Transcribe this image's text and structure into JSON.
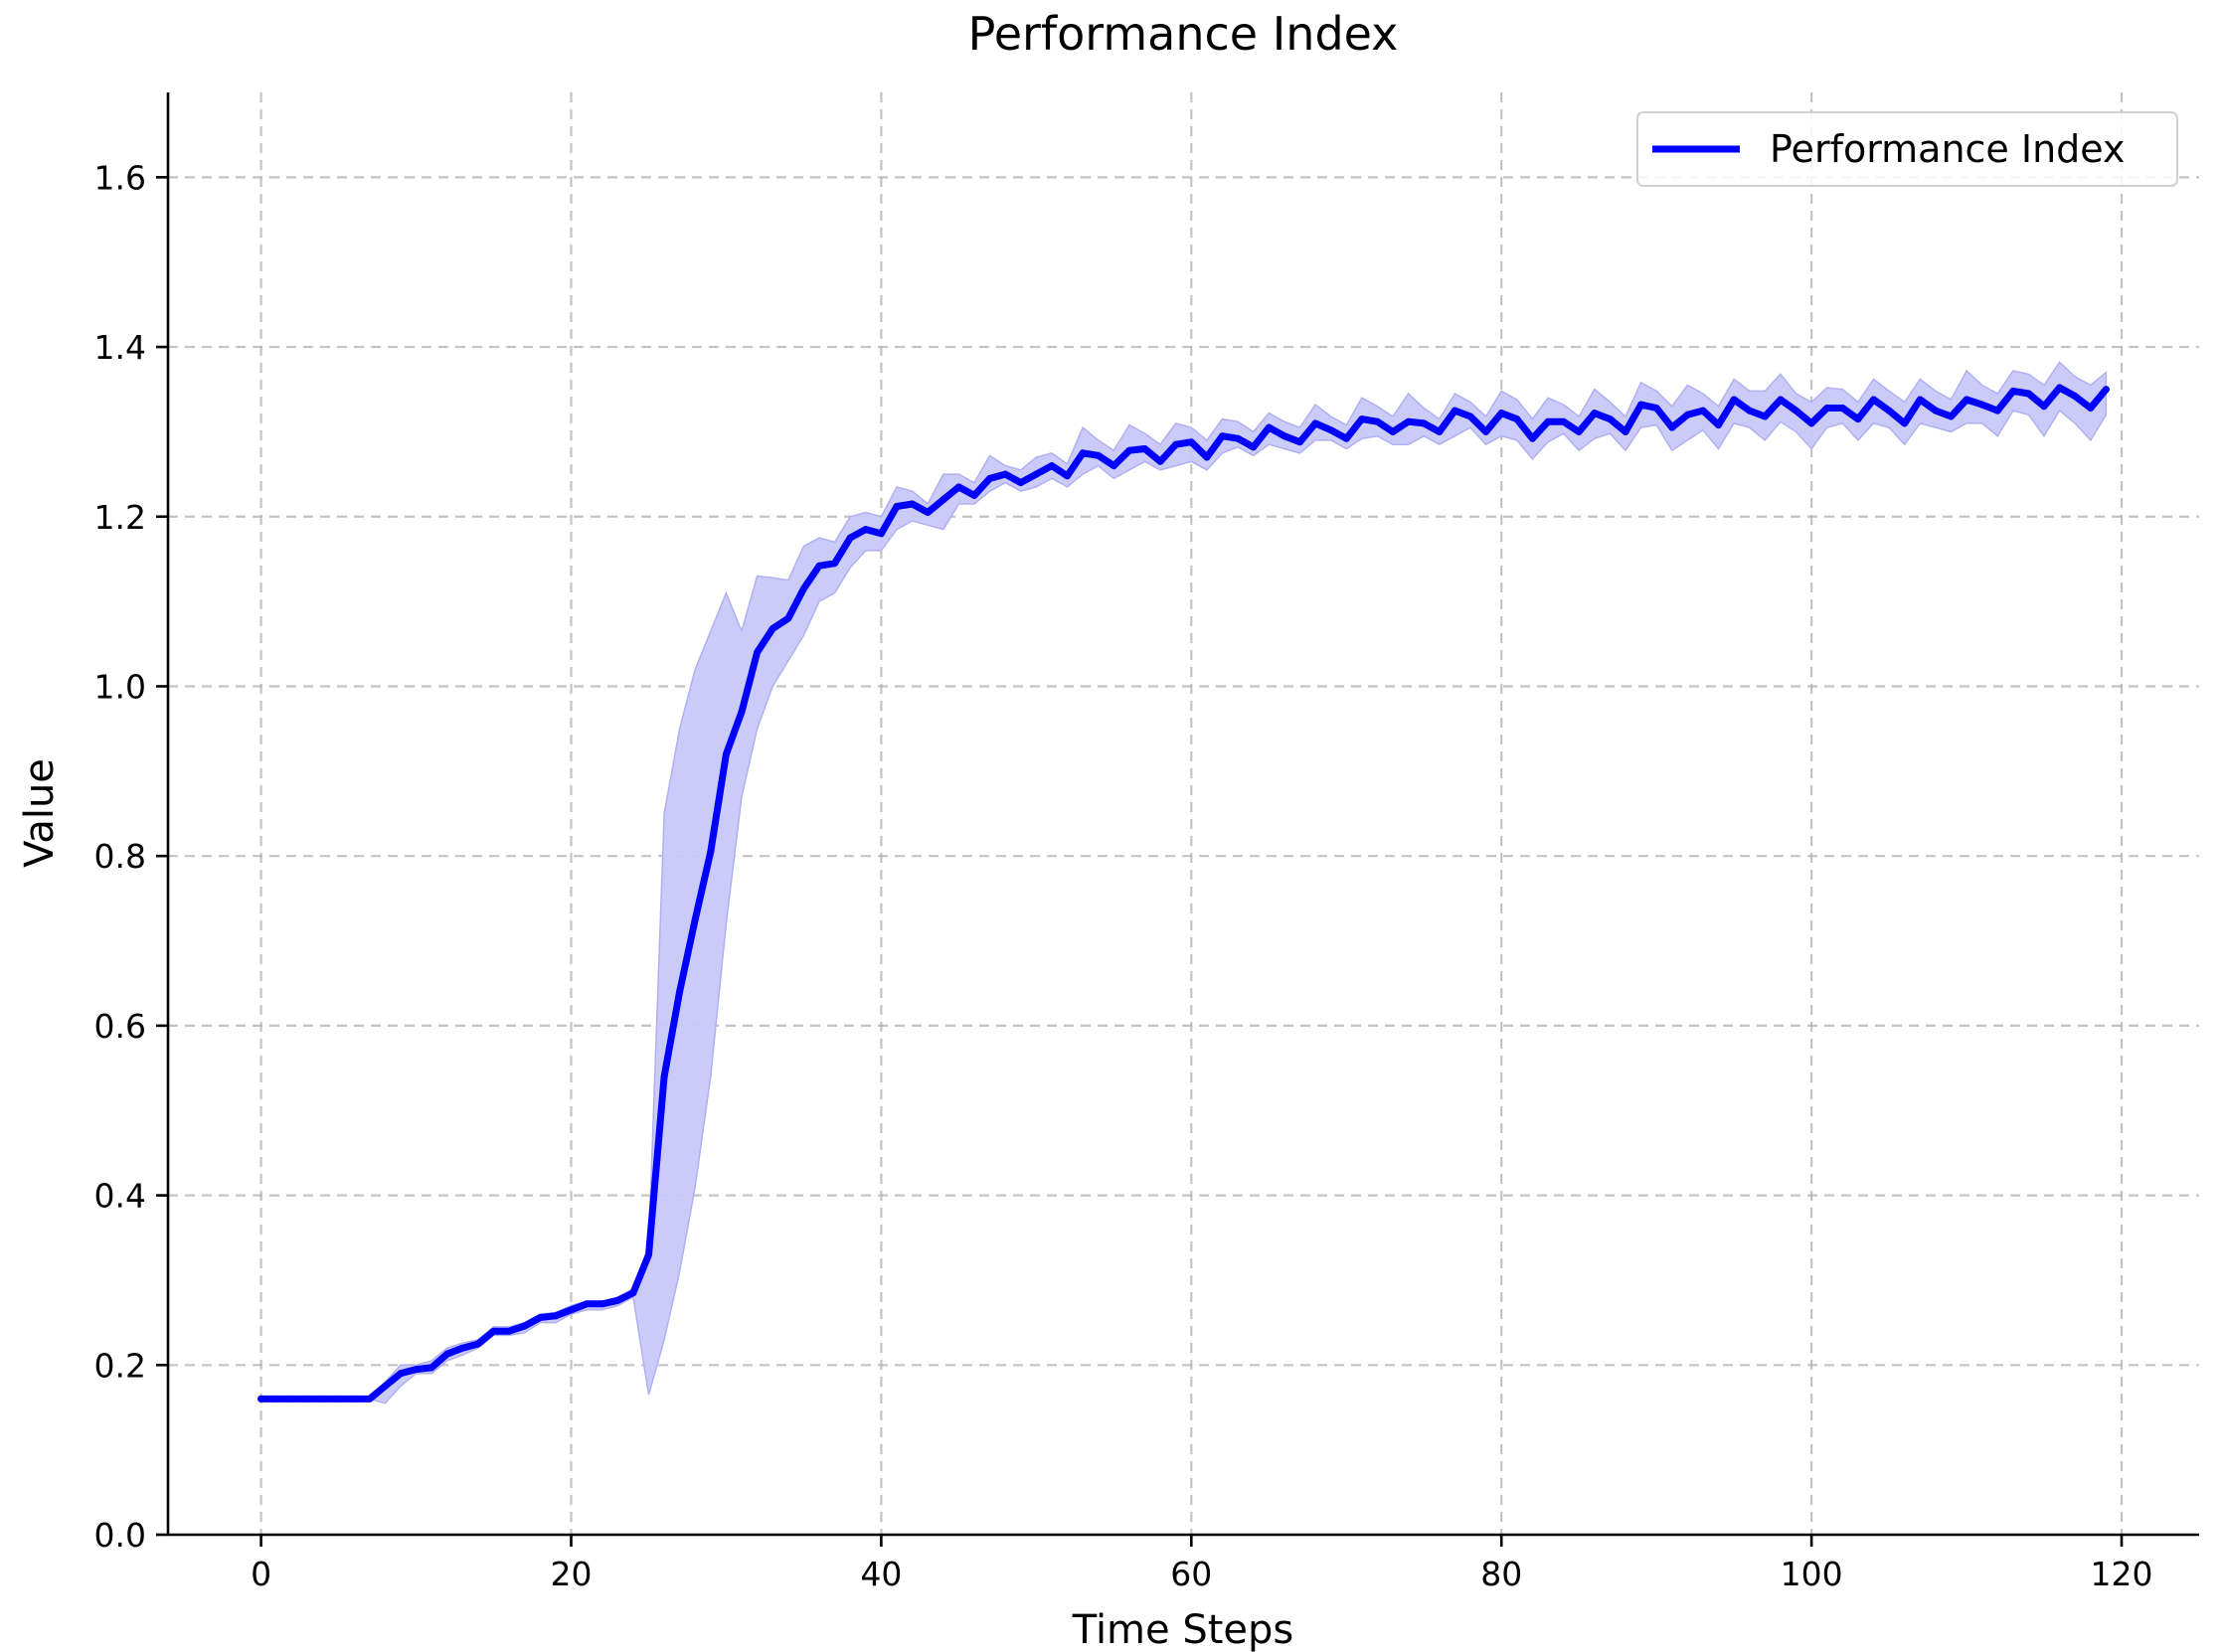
{
  "chart_data": {
    "type": "line",
    "title": "Performance Index",
    "xlabel": "Time Steps",
    "ylabel": "Value",
    "xlim": [
      -6,
      125
    ],
    "ylim": [
      0.0,
      1.7
    ],
    "xticks": [
      0,
      20,
      40,
      60,
      80,
      100,
      120
    ],
    "yticks": [
      0.0,
      0.2,
      0.4,
      0.6,
      0.8,
      1.0,
      1.2,
      1.4,
      1.6
    ],
    "ytick_labels": [
      "0.0",
      "0.2",
      "0.4",
      "0.6",
      "0.8",
      "1.0",
      "1.2",
      "1.4",
      "1.6"
    ],
    "grid": true,
    "legend": "top-right",
    "colors": {
      "line": "#0000ff",
      "band": "#c8c8fa",
      "grid": "#b0b0b0"
    },
    "series": [
      {
        "name": "Performance Index",
        "x": [
          0,
          1,
          2,
          3,
          4,
          5,
          6,
          7,
          8,
          9,
          10,
          11,
          12,
          13,
          14,
          15,
          16,
          17,
          18,
          19,
          20,
          21,
          22,
          23,
          24,
          25,
          26,
          27,
          28,
          29,
          30,
          31,
          32,
          33,
          34,
          35,
          36,
          37,
          38,
          39,
          40,
          41,
          42,
          43,
          44,
          45,
          46,
          47,
          48,
          49,
          50,
          51,
          52,
          53,
          54,
          55,
          56,
          57,
          58,
          59,
          60,
          61,
          62,
          63,
          64,
          65,
          66,
          67,
          68,
          69,
          70,
          71,
          72,
          73,
          74,
          75,
          76,
          77,
          78,
          79,
          80,
          81,
          82,
          83,
          84,
          85,
          86,
          87,
          88,
          89,
          90,
          91,
          92,
          93,
          94,
          95,
          96,
          97,
          98,
          99,
          100,
          101,
          102,
          103,
          104,
          105,
          106,
          107,
          108,
          109,
          110,
          111,
          112,
          113,
          114,
          115,
          116,
          117,
          118,
          119
        ],
        "values": [
          0.16,
          0.16,
          0.16,
          0.16,
          0.16,
          0.16,
          0.16,
          0.16,
          0.175,
          0.19,
          0.195,
          0.197,
          0.213,
          0.22,
          0.225,
          0.24,
          0.24,
          0.246,
          0.256,
          0.258,
          0.265,
          0.272,
          0.272,
          0.276,
          0.285,
          0.33,
          0.54,
          0.64,
          0.725,
          0.805,
          0.92,
          0.97,
          1.04,
          1.068,
          1.08,
          1.115,
          1.142,
          1.145,
          1.175,
          1.185,
          1.18,
          1.212,
          1.215,
          1.205,
          1.22,
          1.235,
          1.225,
          1.245,
          1.25,
          1.24,
          1.25,
          1.26,
          1.248,
          1.275,
          1.272,
          1.26,
          1.278,
          1.28,
          1.265,
          1.285,
          1.288,
          1.27,
          1.295,
          1.292,
          1.282,
          1.305,
          1.295,
          1.288,
          1.31,
          1.302,
          1.292,
          1.315,
          1.312,
          1.3,
          1.312,
          1.31,
          1.3,
          1.325,
          1.318,
          1.3,
          1.322,
          1.315,
          1.292,
          1.312,
          1.312,
          1.3,
          1.322,
          1.315,
          1.3,
          1.332,
          1.328,
          1.305,
          1.32,
          1.325,
          1.308,
          1.338,
          1.325,
          1.318,
          1.338,
          1.325,
          1.31,
          1.328,
          1.328,
          1.315,
          1.338,
          1.325,
          1.31,
          1.338,
          1.325,
          1.318,
          1.338,
          1.332,
          1.325,
          1.348,
          1.345,
          1.33,
          1.352,
          1.342,
          1.328,
          1.35
        ],
        "lower": [
          0.16,
          0.16,
          0.16,
          0.16,
          0.16,
          0.16,
          0.16,
          0.16,
          0.155,
          0.175,
          0.19,
          0.19,
          0.205,
          0.212,
          0.22,
          0.235,
          0.235,
          0.238,
          0.25,
          0.25,
          0.26,
          0.265,
          0.265,
          0.27,
          0.28,
          0.165,
          0.23,
          0.31,
          0.41,
          0.54,
          0.72,
          0.87,
          0.95,
          1.0,
          1.03,
          1.06,
          1.1,
          1.11,
          1.14,
          1.16,
          1.16,
          1.185,
          1.195,
          1.19,
          1.185,
          1.215,
          1.215,
          1.23,
          1.24,
          1.23,
          1.235,
          1.245,
          1.235,
          1.25,
          1.26,
          1.245,
          1.255,
          1.265,
          1.255,
          1.26,
          1.265,
          1.255,
          1.275,
          1.282,
          1.272,
          1.285,
          1.28,
          1.275,
          1.29,
          1.29,
          1.28,
          1.292,
          1.295,
          1.285,
          1.285,
          1.295,
          1.285,
          1.295,
          1.305,
          1.285,
          1.295,
          1.29,
          1.268,
          1.288,
          1.298,
          1.278,
          1.292,
          1.298,
          1.278,
          1.305,
          1.308,
          1.278,
          1.29,
          1.302,
          1.28,
          1.31,
          1.305,
          1.29,
          1.312,
          1.3,
          1.28,
          1.305,
          1.31,
          1.29,
          1.31,
          1.305,
          1.285,
          1.31,
          1.305,
          1.3,
          1.31,
          1.31,
          1.295,
          1.325,
          1.32,
          1.295,
          1.325,
          1.31,
          1.29,
          1.32
        ],
        "upper": [
          0.16,
          0.16,
          0.16,
          0.16,
          0.16,
          0.16,
          0.16,
          0.16,
          0.18,
          0.2,
          0.2,
          0.205,
          0.22,
          0.226,
          0.23,
          0.245,
          0.245,
          0.25,
          0.26,
          0.262,
          0.27,
          0.275,
          0.275,
          0.28,
          0.29,
          0.34,
          0.85,
          0.95,
          1.02,
          1.065,
          1.11,
          1.065,
          1.13,
          1.128,
          1.125,
          1.165,
          1.175,
          1.17,
          1.2,
          1.205,
          1.2,
          1.235,
          1.23,
          1.215,
          1.25,
          1.25,
          1.24,
          1.272,
          1.26,
          1.255,
          1.27,
          1.275,
          1.262,
          1.305,
          1.29,
          1.278,
          1.308,
          1.298,
          1.285,
          1.31,
          1.305,
          1.29,
          1.315,
          1.312,
          1.3,
          1.322,
          1.312,
          1.305,
          1.332,
          1.318,
          1.308,
          1.34,
          1.33,
          1.318,
          1.345,
          1.328,
          1.315,
          1.345,
          1.335,
          1.318,
          1.348,
          1.338,
          1.315,
          1.34,
          1.332,
          1.318,
          1.35,
          1.335,
          1.318,
          1.358,
          1.348,
          1.33,
          1.355,
          1.345,
          1.33,
          1.362,
          1.348,
          1.348,
          1.368,
          1.345,
          1.335,
          1.352,
          1.35,
          1.335,
          1.362,
          1.348,
          1.335,
          1.362,
          1.348,
          1.338,
          1.372,
          1.355,
          1.345,
          1.372,
          1.368,
          1.355,
          1.382,
          1.365,
          1.355,
          1.37
        ]
      }
    ]
  }
}
